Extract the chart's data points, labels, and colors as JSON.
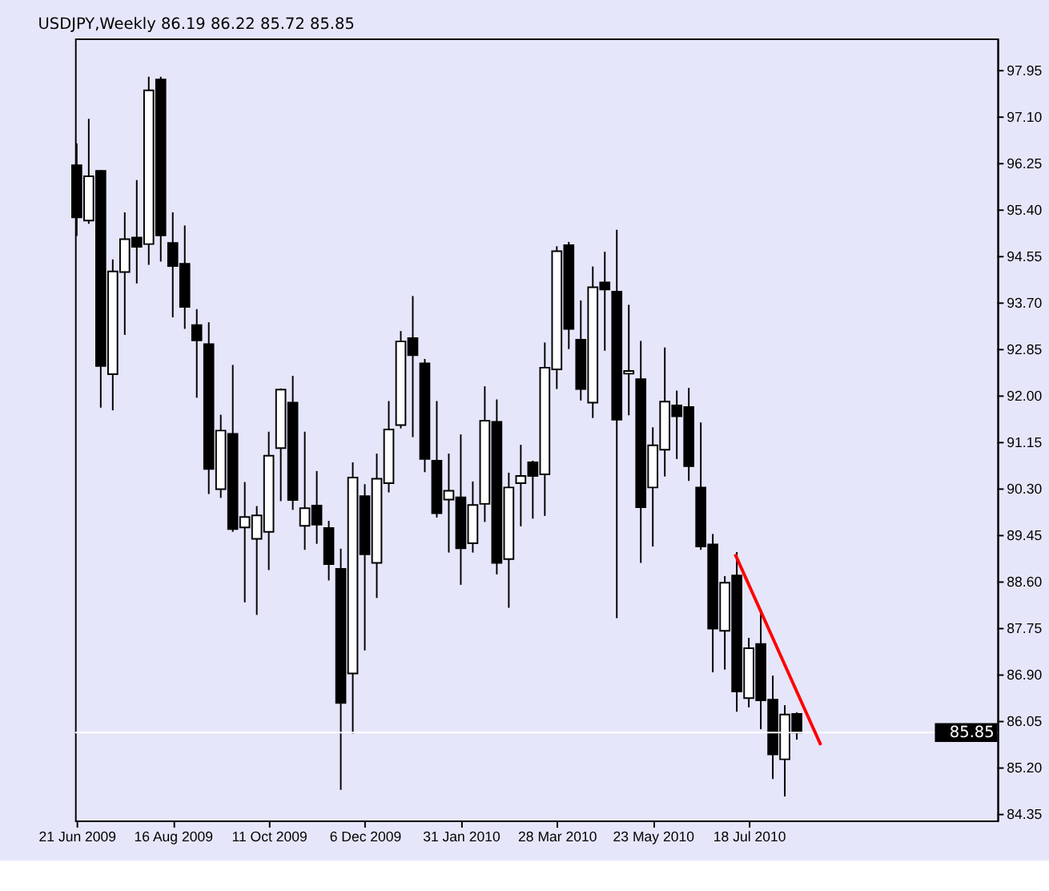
{
  "chart_data": {
    "type": "candlestick",
    "title": "USDJPY,Weekly  86.19 86.22 85.72 85.85",
    "x": [
      "2009-06-21",
      "2009-06-28",
      "2009-07-05",
      "2009-07-12",
      "2009-07-19",
      "2009-07-26",
      "2009-08-02",
      "2009-08-09",
      "2009-08-16",
      "2009-08-23",
      "2009-08-30",
      "2009-09-06",
      "2009-09-13",
      "2009-09-20",
      "2009-09-27",
      "2009-10-04",
      "2009-10-11",
      "2009-10-18",
      "2009-10-25",
      "2009-11-01",
      "2009-11-08",
      "2009-11-15",
      "2009-11-22",
      "2009-11-29",
      "2009-12-06",
      "2009-12-13",
      "2009-12-20",
      "2009-12-27",
      "2010-01-03",
      "2010-01-10",
      "2010-01-17",
      "2010-01-24",
      "2010-01-31",
      "2010-02-07",
      "2010-02-14",
      "2010-02-21",
      "2010-02-28",
      "2010-03-07",
      "2010-03-14",
      "2010-03-21",
      "2010-03-28",
      "2010-04-04",
      "2010-04-11",
      "2010-04-18",
      "2010-04-25",
      "2010-05-02",
      "2010-05-09",
      "2010-05-16",
      "2010-05-23",
      "2010-05-30",
      "2010-06-06",
      "2010-06-13",
      "2010-06-20",
      "2010-06-27",
      "2010-07-04",
      "2010-07-11",
      "2010-07-18",
      "2010-07-25",
      "2010-08-01",
      "2010-08-08",
      "2010-08-15"
    ],
    "ohlc": [
      [
        96.22,
        96.62,
        94.93,
        95.27
      ],
      [
        95.21,
        97.07,
        95.15,
        96.02
      ],
      [
        96.12,
        96.13,
        91.79,
        92.55
      ],
      [
        92.4,
        94.5,
        91.74,
        94.28
      ],
      [
        94.27,
        95.36,
        93.12,
        94.87
      ],
      [
        94.9,
        95.95,
        94.06,
        94.73
      ],
      [
        94.78,
        97.84,
        94.4,
        97.59
      ],
      [
        97.79,
        97.84,
        94.46,
        94.94
      ],
      [
        94.8,
        95.36,
        93.44,
        94.38
      ],
      [
        94.42,
        95.12,
        93.23,
        93.63
      ],
      [
        93.3,
        93.59,
        91.97,
        93.02
      ],
      [
        92.95,
        93.35,
        90.21,
        90.67
      ],
      [
        90.3,
        91.66,
        90.14,
        91.37
      ],
      [
        91.31,
        92.57,
        89.52,
        89.57
      ],
      [
        89.6,
        90.43,
        88.23,
        89.79
      ],
      [
        89.39,
        89.99,
        88.0,
        89.82
      ],
      [
        89.52,
        91.35,
        88.82,
        90.91
      ],
      [
        91.05,
        92.14,
        90.08,
        92.12
      ],
      [
        91.88,
        92.37,
        89.92,
        90.1
      ],
      [
        89.63,
        91.35,
        89.19,
        89.95
      ],
      [
        90.0,
        90.63,
        89.3,
        89.65
      ],
      [
        89.59,
        89.72,
        88.63,
        88.93
      ],
      [
        88.84,
        89.21,
        84.8,
        86.39
      ],
      [
        86.93,
        90.79,
        85.83,
        90.51
      ],
      [
        90.17,
        90.39,
        87.35,
        89.11
      ],
      [
        88.95,
        90.95,
        88.31,
        90.49
      ],
      [
        90.41,
        91.91,
        90.24,
        91.39
      ],
      [
        91.47,
        93.19,
        91.41,
        93.0
      ],
      [
        93.06,
        93.83,
        91.25,
        92.75
      ],
      [
        92.6,
        92.68,
        90.61,
        90.85
      ],
      [
        90.82,
        91.91,
        89.78,
        89.86
      ],
      [
        90.11,
        90.95,
        89.14,
        90.27
      ],
      [
        90.15,
        91.3,
        88.55,
        89.22
      ],
      [
        89.31,
        90.44,
        89.14,
        90.01
      ],
      [
        90.03,
        92.18,
        89.7,
        91.55
      ],
      [
        91.53,
        91.94,
        88.74,
        88.95
      ],
      [
        89.02,
        90.6,
        88.13,
        90.33
      ],
      [
        90.41,
        91.11,
        89.62,
        90.54
      ],
      [
        90.79,
        90.82,
        89.76,
        90.54
      ],
      [
        90.57,
        92.98,
        89.81,
        92.52
      ],
      [
        92.49,
        94.74,
        92.13,
        94.65
      ],
      [
        94.76,
        94.82,
        92.86,
        93.23
      ],
      [
        93.03,
        93.75,
        91.92,
        92.13
      ],
      [
        91.88,
        94.37,
        91.6,
        93.99
      ],
      [
        94.08,
        94.64,
        92.83,
        93.95
      ],
      [
        93.91,
        95.04,
        87.94,
        91.57
      ],
      [
        92.41,
        93.67,
        91.65,
        92.46
      ],
      [
        92.31,
        93.01,
        88.95,
        89.97
      ],
      [
        90.33,
        91.43,
        89.25,
        91.1
      ],
      [
        91.02,
        92.89,
        90.53,
        91.9
      ],
      [
        91.83,
        92.1,
        90.85,
        91.63
      ],
      [
        91.8,
        92.15,
        90.45,
        90.72
      ],
      [
        90.33,
        91.52,
        89.19,
        89.25
      ],
      [
        89.29,
        89.48,
        86.95,
        87.75
      ],
      [
        87.71,
        88.71,
        87.0,
        88.59
      ],
      [
        88.72,
        89.15,
        86.23,
        86.6
      ],
      [
        86.48,
        87.58,
        86.31,
        87.39
      ],
      [
        87.47,
        88.1,
        85.91,
        86.44
      ],
      [
        86.45,
        86.89,
        85.0,
        85.45
      ],
      [
        85.36,
        86.35,
        84.68,
        86.18
      ],
      [
        86.19,
        86.22,
        85.72,
        85.85
      ]
    ],
    "series": [
      {
        "type": "line",
        "x": [
          "2010-07-10",
          "2010-08-29"
        ],
        "values": [
          89.11,
          85.62
        ],
        "color": "#ff0000"
      }
    ],
    "xlim": [
      "2009-06-20",
      "2010-12-10"
    ],
    "xticks": [
      {
        "value": "2009-06-21",
        "label": "21 Jun 2009"
      },
      {
        "value": "2009-08-16",
        "label": "16 Aug 2009"
      },
      {
        "value": "2009-10-11",
        "label": "11 Oct 2009"
      },
      {
        "value": "2009-12-06",
        "label": "6 Dec 2009"
      },
      {
        "value": "2010-01-31",
        "label": "31 Jan 2010"
      },
      {
        "value": "2010-03-28",
        "label": "28 Mar 2010"
      },
      {
        "value": "2010-05-23",
        "label": "23 May 2010"
      },
      {
        "value": "2010-07-18",
        "label": "18 Jul 2010"
      }
    ],
    "ylim": [
      84.24,
      98.54
    ],
    "yticks": [
      84.35,
      {
        "value": 85.2,
        "label": "85.20"
      },
      86.05,
      {
        "value": 86.9,
        "label": "86.90"
      },
      87.75,
      {
        "value": 88.6,
        "label": "88.60"
      },
      89.45,
      {
        "value": 90.3,
        "label": "90.30"
      },
      91.15,
      {
        "value": 92,
        "label": "92.00"
      },
      92.85,
      {
        "value": 93.7,
        "label": "93.70"
      },
      94.55,
      {
        "value": 95.4,
        "label": "95.40"
      },
      96.25,
      {
        "value": 97.1,
        "label": "97.10"
      },
      97.95
    ],
    "ref_lines": [
      {
        "axis": "y",
        "value": 85.85,
        "label": "85.85",
        "color": "#ffffff"
      }
    ]
  }
}
